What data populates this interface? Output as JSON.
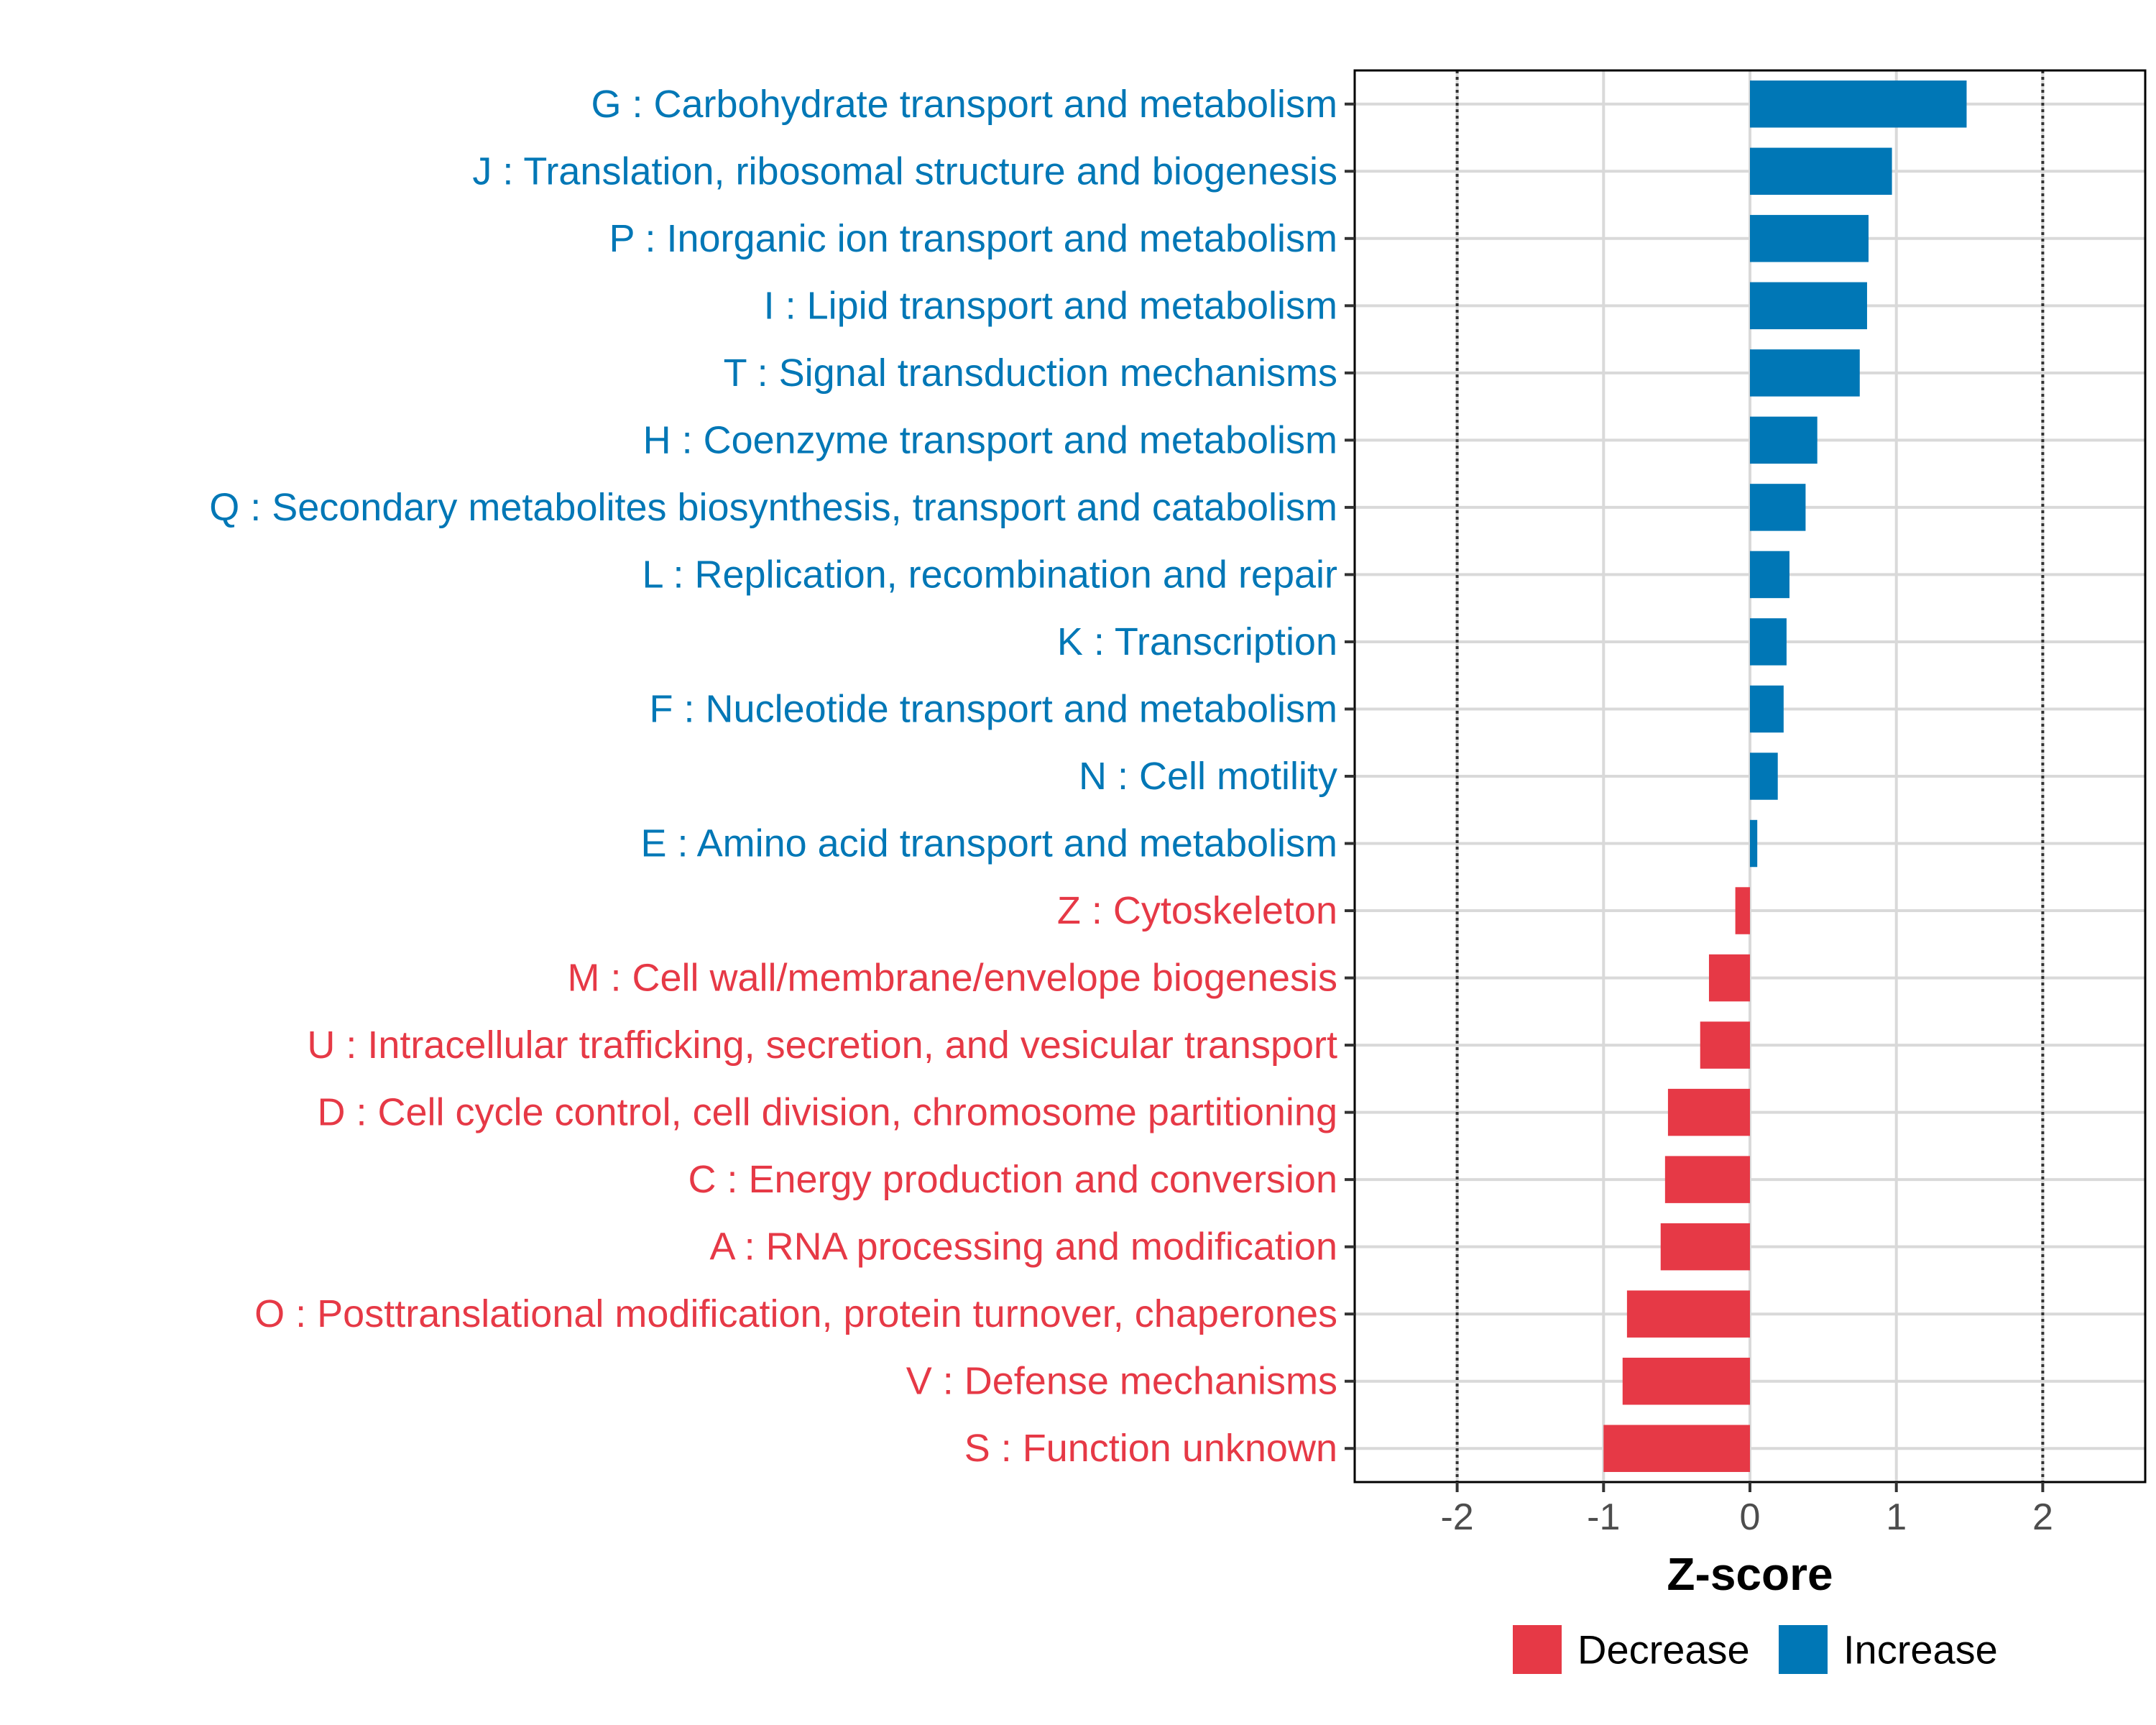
{
  "chart_data": {
    "type": "bar",
    "orientation": "horizontal",
    "xlabel": "Z-score",
    "xlim": [
      -2.7,
      2.7
    ],
    "xticks": [
      -2,
      -1,
      0,
      1,
      2
    ],
    "xtick_labels": [
      "-2",
      "-1",
      "0",
      "1",
      "2"
    ],
    "reference_lines": [
      -2,
      2
    ],
    "grid": true,
    "legend_position": "bottom",
    "colors": {
      "Decrease": "#E63946",
      "Increase": "#0077B6"
    },
    "legend": [
      {
        "name": "Decrease",
        "color": "#E63946"
      },
      {
        "name": "Increase",
        "color": "#0077B6"
      }
    ],
    "categories": [
      "G : Carbohydrate transport and metabolism",
      "J : Translation, ribosomal structure and biogenesis",
      "P : Inorganic ion transport and metabolism",
      "I : Lipid transport and metabolism",
      "T : Signal transduction mechanisms",
      "H : Coenzyme transport and metabolism",
      "Q : Secondary metabolites biosynthesis, transport and catabolism",
      "L : Replication, recombination and repair",
      "K : Transcription",
      "F : Nucleotide transport and metabolism",
      "N : Cell motility",
      "E : Amino acid transport and metabolism",
      "Z : Cytoskeleton",
      "M : Cell wall/membrane/envelope biogenesis",
      "U : Intracellular trafficking, secretion, and vesicular transport",
      "D : Cell cycle control, cell division, chromosome partitioning",
      "C : Energy production and conversion",
      "A : RNA processing and modification",
      "O : Posttranslational modification, protein turnover, chaperones",
      "V : Defense mechanisms",
      "S : Function unknown"
    ],
    "values": [
      1.48,
      0.97,
      0.81,
      0.8,
      0.75,
      0.46,
      0.38,
      0.27,
      0.25,
      0.23,
      0.19,
      0.05,
      -0.1,
      -0.28,
      -0.34,
      -0.56,
      -0.58,
      -0.61,
      -0.84,
      -0.87,
      -1.0
    ],
    "groups": [
      "Increase",
      "Increase",
      "Increase",
      "Increase",
      "Increase",
      "Increase",
      "Increase",
      "Increase",
      "Increase",
      "Increase",
      "Increase",
      "Increase",
      "Decrease",
      "Decrease",
      "Decrease",
      "Decrease",
      "Decrease",
      "Decrease",
      "Decrease",
      "Decrease",
      "Decrease"
    ]
  }
}
